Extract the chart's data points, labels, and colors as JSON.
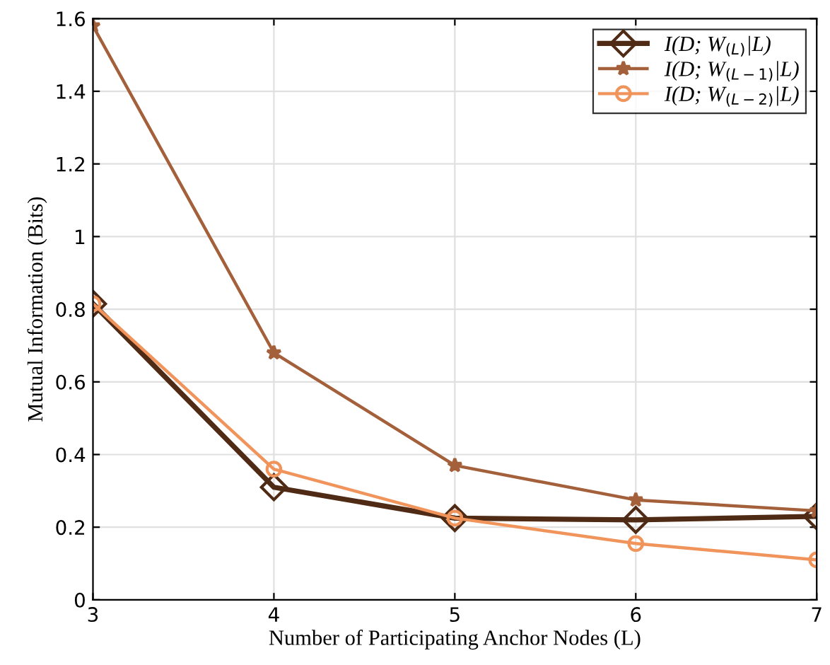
{
  "chart_data": {
    "type": "line",
    "xlabel": "Number of Participating Anchor Nodes (L)",
    "ylabel": "Mutual Information (Bits)",
    "x": [
      3,
      4,
      5,
      6,
      7
    ],
    "series": [
      {
        "name": "I(D; W$_{(L)}$|L)",
        "color": "#4f2a14",
        "marker": "diamond",
        "values": [
          0.815,
          0.31,
          0.225,
          0.22,
          0.23
        ]
      },
      {
        "name": "I(D; W$_{(L−1)}$|L)",
        "color": "#a3603a",
        "marker": "star",
        "values": [
          1.58,
          0.68,
          0.37,
          0.275,
          0.245
        ]
      },
      {
        "name": "I(D; W$_{(L−2)}$|L)",
        "color": "#f0945c",
        "marker": "circle",
        "values": [
          0.815,
          0.36,
          0.225,
          0.155,
          0.11
        ]
      }
    ],
    "xlim": [
      3,
      7
    ],
    "xticks": [
      3,
      4,
      5,
      6,
      7
    ],
    "ylim": [
      0,
      1.6
    ],
    "yticks": [
      0,
      0.2,
      0.4,
      0.6,
      0.8,
      1,
      1.2,
      1.4,
      1.6
    ],
    "grid": true,
    "legend": "top right",
    "line_style": "solid"
  }
}
